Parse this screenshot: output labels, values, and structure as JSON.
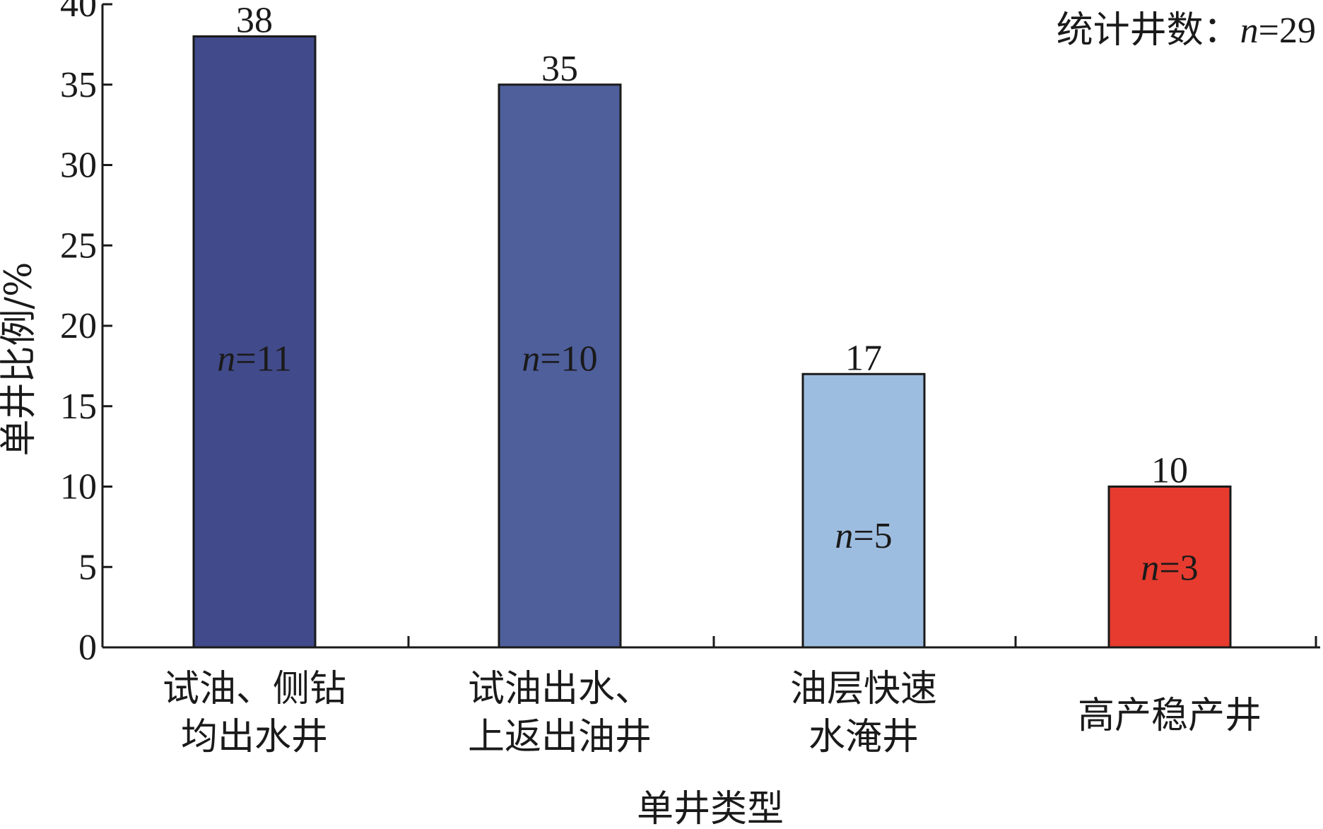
{
  "chart_data": {
    "type": "bar",
    "ylabel": "单井比例/%",
    "xlabel": "单井类型",
    "ylim": [
      0,
      40
    ],
    "yticks": [
      0,
      5,
      10,
      15,
      20,
      25,
      30,
      35,
      40
    ],
    "grid": false,
    "annotation": {
      "prefix": "统计井数：",
      "n_symbol": "n",
      "n_value": "=29"
    },
    "categories": [
      [
        "试油、侧钻",
        "均出水井"
      ],
      [
        "试油出水、",
        "上返出油井"
      ],
      [
        "油层快速",
        "水淹井"
      ],
      [
        "高产稳产井"
      ]
    ],
    "values": [
      38,
      35,
      17,
      10
    ],
    "value_labels": [
      "38",
      "35",
      "17",
      "10"
    ],
    "counts": [
      "=11",
      "=10",
      "=5",
      "=3"
    ],
    "count_symbol": "n",
    "count_label_y": [
      18,
      18,
      7,
      5
    ],
    "colors": [
      "#414a8a",
      "#4f5f9c",
      "#9dbde0",
      "#e63b2e"
    ]
  }
}
